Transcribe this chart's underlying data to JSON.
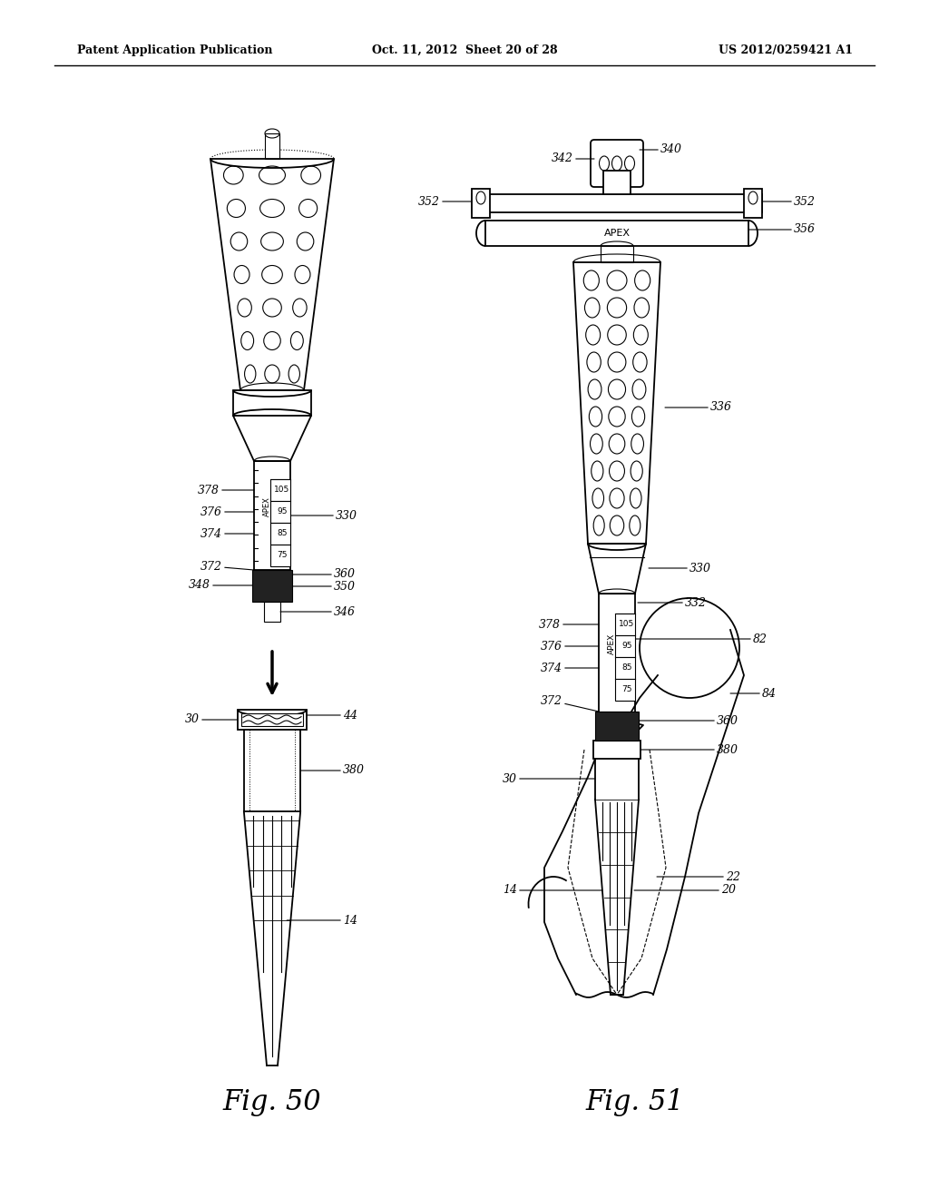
{
  "header_left": "Patent Application Publication",
  "header_mid": "Oct. 11, 2012  Sheet 20 of 28",
  "header_right": "US 2012/0259421 A1",
  "fig50_label": "Fig. 50",
  "fig51_label": "Fig. 51",
  "background_color": "#ffffff",
  "line_color": "#000000"
}
